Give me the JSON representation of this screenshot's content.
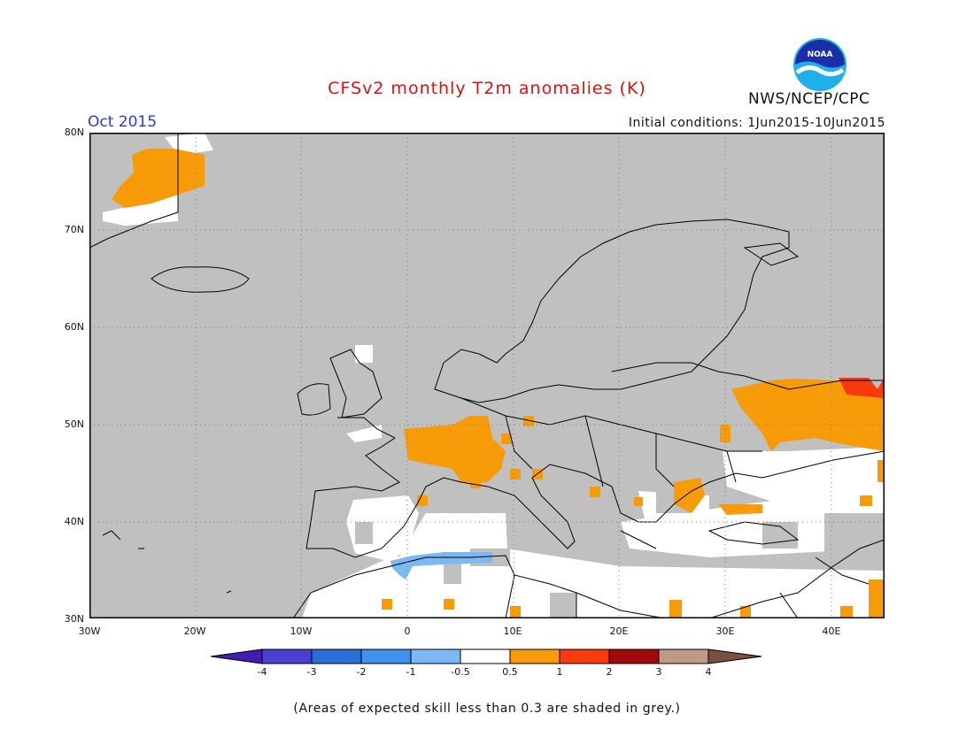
{
  "header": {
    "title": "CFSv2 monthly T2m anomalies (K)",
    "month": "Oct 2015",
    "initial_conditions": "Initial conditions: 1Jun2015-10Jun2015",
    "agency": "NWS/NCEP/CPC",
    "logo_text": "NOAA"
  },
  "map": {
    "projection": "lat-lon",
    "lon_range": [
      -30,
      45
    ],
    "lat_range": [
      30,
      80
    ],
    "lat_labels": [
      "80N",
      "70N",
      "60N",
      "50N",
      "40N",
      "30N"
    ],
    "lon_labels": [
      "30W",
      "20W",
      "10W",
      "0",
      "10E",
      "20E",
      "30E",
      "40E"
    ],
    "grid": "dotted",
    "colors": {
      "land_skill_mask": "#c0c0c0",
      "neutral": "#ffffff",
      "warm_0_5_1": "#f79b08",
      "warm_1_2": "#f83a0e",
      "cool_-1_-0_5": "#7cb9f2"
    },
    "anomaly_regions": [
      {
        "name": "Greenland coast",
        "category": "0.5 to 1"
      },
      {
        "name": "France / Alps",
        "category": "0.5 to 1"
      },
      {
        "name": "Ukraine / Southern Russia",
        "category": "0.5 to 1"
      },
      {
        "name": "Southern Russia east",
        "category": "1 to 2"
      },
      {
        "name": "Black Sea / Turkey north",
        "category": "0.5 to 1"
      },
      {
        "name": "Algeria north coast",
        "category": "-1 to -0.5"
      },
      {
        "name": "North Africa interior",
        "category": "-0.5 to 0.5"
      },
      {
        "name": "Iberia / Turkey / Middle East",
        "category": "-0.5 to 0.5"
      }
    ]
  },
  "colorbar": {
    "labels": [
      "-4",
      "-3",
      "-2",
      "-1",
      "-0.5",
      "0.5",
      "1",
      "2",
      "3",
      "4"
    ],
    "colors": [
      "#3f1eb1",
      "#4b3fd1",
      "#2a6fd8",
      "#3d93ec",
      "#7cb9f2",
      "#ffffff",
      "#f79b08",
      "#f83a0e",
      "#a10a0a",
      "#c09a88",
      "#7a5040"
    ]
  },
  "footnote": "(Areas of expected skill less than 0.3 are shaded in grey.)"
}
